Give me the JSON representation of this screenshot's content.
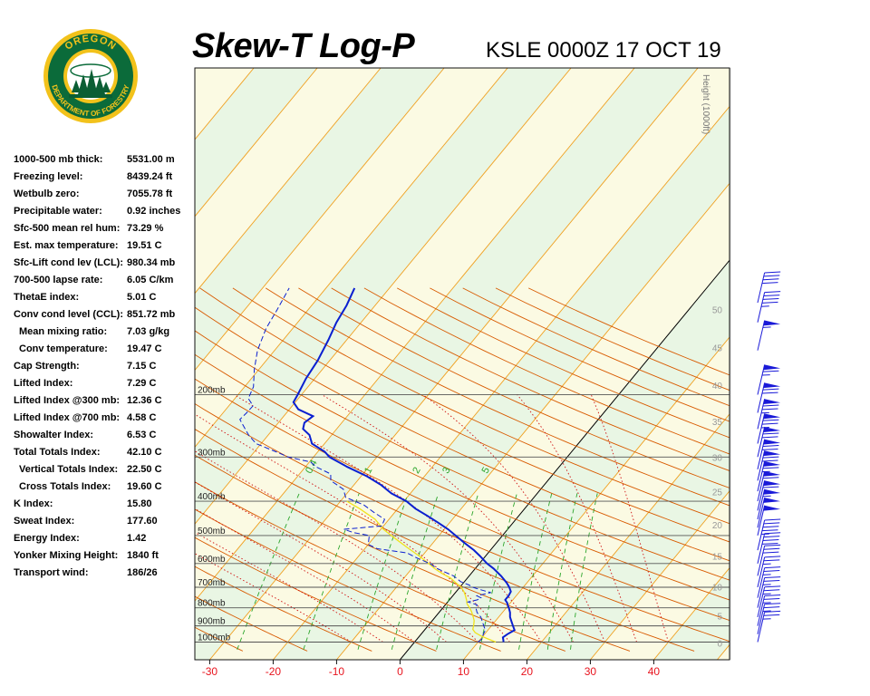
{
  "header": {
    "title": "Skew-T Log-P",
    "station_time": "KSLE 0000Z 17 OCT 19"
  },
  "logo": {
    "top_text": "OREGON",
    "bottom_text": "DEPARTMENT OF FORESTRY",
    "colors": {
      "ring": "#0b6b3a",
      "gold": "#f2c21b",
      "tree": "#0b5e34"
    }
  },
  "indices": [
    {
      "label": "1000-500 mb thick:",
      "value": "5531.00 m",
      "indent": false
    },
    {
      "label": "Freezing level:",
      "value": "8439.24 ft",
      "indent": false
    },
    {
      "label": "Wetbulb zero:",
      "value": "7055.78 ft",
      "indent": false
    },
    {
      "label": "Precipitable water:",
      "value": "0.92 inches",
      "indent": false
    },
    {
      "label": "Sfc-500 mean rel hum:",
      "value": "73.29 %",
      "indent": false
    },
    {
      "label": "Est. max temperature:",
      "value": "19.51 C",
      "indent": false
    },
    {
      "label": "Sfc-Lift cond lev (LCL):",
      "value": "980.34 mb",
      "indent": false
    },
    {
      "label": "700-500 lapse rate:",
      "value": "6.05 C/km",
      "indent": false
    },
    {
      "label": "ThetaE index:",
      "value": "5.01 C",
      "indent": false
    },
    {
      "label": "Conv cond level (CCL):",
      "value": "851.72 mb",
      "indent": false
    },
    {
      "label": "Mean mixing ratio:",
      "value": "7.03 g/kg",
      "indent": true
    },
    {
      "label": "Conv temperature:",
      "value": "19.47 C",
      "indent": true
    },
    {
      "label": "Cap Strength:",
      "value": "7.15 C",
      "indent": false
    },
    {
      "label": "Lifted Index:",
      "value": "7.29 C",
      "indent": false
    },
    {
      "label": "Lifted Index @300 mb:",
      "value": "12.36 C",
      "indent": false
    },
    {
      "label": "Lifted Index @700 mb:",
      "value": "4.58 C",
      "indent": false
    },
    {
      "label": "Showalter Index:",
      "value": "6.53 C",
      "indent": false
    },
    {
      "label": "Total Totals Index:",
      "value": "42.10 C",
      "indent": false
    },
    {
      "label": "Vertical Totals Index:",
      "value": "22.50 C",
      "indent": true
    },
    {
      "label": "Cross Totals Index:",
      "value": "19.60 C",
      "indent": true
    },
    {
      "label": "K Index:",
      "value": "15.80",
      "indent": false
    },
    {
      "label": "Sweat Index:",
      "value": "177.60",
      "indent": false
    },
    {
      "label": "Energy Index:",
      "value": "1.42",
      "indent": false
    },
    {
      "label": "Yonker Mixing Height:",
      "value": "1840 ft",
      "indent": false
    },
    {
      "label": "Transport wind:",
      "value": "186/26",
      "indent": false
    }
  ],
  "chart_data": {
    "type": "line",
    "title": "Skew-T Log-P",
    "subtitle": "KSLE 0000Z 17 OCT 19",
    "x_axis": {
      "ticks": [
        -30,
        -20,
        -10,
        0,
        10,
        20,
        30,
        40
      ],
      "color": "#e8141e"
    },
    "isobars": [
      {
        "p": 1000,
        "label": "1000mb"
      },
      {
        "p": 900,
        "label": "900mb"
      },
      {
        "p": 800,
        "label": "800mb"
      },
      {
        "p": 700,
        "label": "700mb"
      },
      {
        "p": 600,
        "label": "600mb"
      },
      {
        "p": 500,
        "label": "500mb"
      },
      {
        "p": 400,
        "label": "400mb"
      },
      {
        "p": 300,
        "label": "300mb"
      },
      {
        "p": 200,
        "label": "200mb"
      }
    ],
    "height_axis": {
      "title": "Height (1000ft)",
      "ticks": [
        {
          "label": "0",
          "p": 1005
        },
        {
          "label": "5",
          "p": 843
        },
        {
          "label": "10",
          "p": 697
        },
        {
          "label": "15",
          "p": 572
        },
        {
          "label": "20",
          "p": 466
        },
        {
          "label": "25",
          "p": 376
        },
        {
          "label": "30",
          "p": 300
        },
        {
          "label": "35",
          "p": 238
        },
        {
          "label": "40",
          "p": 188
        },
        {
          "label": "45",
          "p": 147
        },
        {
          "label": "50",
          "p": 115
        }
      ]
    },
    "mixing_ratio_labels": [
      "0.4",
      "1",
      "2",
      "3",
      "5"
    ],
    "temperature_profile": {
      "color": "#0a1fd0",
      "points": [
        [
          1000,
          14.0
        ],
        [
          990,
          13.8
        ],
        [
          970,
          13.3
        ],
        [
          950,
          13.6
        ],
        [
          925,
          14.2
        ],
        [
          900,
          13.4
        ],
        [
          875,
          12.6
        ],
        [
          850,
          11.8
        ],
        [
          825,
          11.2
        ],
        [
          800,
          10.4
        ],
        [
          790,
          10.0
        ],
        [
          775,
          9.5
        ],
        [
          760,
          8.8
        ],
        [
          740,
          8.8
        ],
        [
          720,
          8.6
        ],
        [
          700,
          7.8
        ],
        [
          680,
          6.8
        ],
        [
          650,
          5.0
        ],
        [
          620,
          2.9
        ],
        [
          600,
          1.2
        ],
        [
          570,
          -1.0
        ],
        [
          550,
          -2.6
        ],
        [
          525,
          -5.0
        ],
        [
          500,
          -7.4
        ],
        [
          480,
          -9.4
        ],
        [
          460,
          -11.8
        ],
        [
          440,
          -14.4
        ],
        [
          420,
          -17.2
        ],
        [
          400,
          -19.6
        ],
        [
          380,
          -23.0
        ],
        [
          360,
          -25.7
        ],
        [
          340,
          -29.1
        ],
        [
          320,
          -33.4
        ],
        [
          300,
          -37.5
        ],
        [
          290,
          -38.9
        ],
        [
          275,
          -42.0
        ],
        [
          260,
          -43.5
        ],
        [
          250,
          -45.3
        ],
        [
          240,
          -45.9
        ],
        [
          230,
          -45.4
        ],
        [
          220,
          -48.6
        ],
        [
          210,
          -50.3
        ],
        [
          200,
          -50.6
        ],
        [
          180,
          -51.4
        ],
        [
          160,
          -51.9
        ],
        [
          140,
          -52.9
        ],
        [
          125,
          -53.9
        ],
        [
          112,
          -54.5
        ],
        [
          100,
          -55.5
        ]
      ]
    },
    "dewpoint_profile": {
      "color": "#0a1fd0",
      "points": [
        [
          1000,
          10.0
        ],
        [
          980,
          10.2
        ],
        [
          950,
          9.8
        ],
        [
          925,
          9.6
        ],
        [
          900,
          8.8
        ],
        [
          875,
          8.0
        ],
        [
          850,
          7.2
        ],
        [
          825,
          6.0
        ],
        [
          800,
          5.2
        ],
        [
          785,
          5.0
        ],
        [
          770,
          3.2
        ],
        [
          760,
          4.4
        ],
        [
          750,
          4.7
        ],
        [
          740,
          3.8
        ],
        [
          725,
          5.6
        ],
        [
          710,
          3.4
        ],
        [
          700,
          2.0
        ],
        [
          690,
          1.2
        ],
        [
          675,
          -0.6
        ],
        [
          650,
          -2.5
        ],
        [
          620,
          -6.0
        ],
        [
          600,
          -7.8
        ],
        [
          580,
          -10.4
        ],
        [
          560,
          -12.8
        ],
        [
          545,
          -18.0
        ],
        [
          530,
          -20.0
        ],
        [
          515,
          -20.5
        ],
        [
          500,
          -21.0
        ],
        [
          490,
          -24.0
        ],
        [
          480,
          -25.8
        ],
        [
          470,
          -20.3
        ],
        [
          450,
          -20.7
        ],
        [
          430,
          -23.3
        ],
        [
          410,
          -25.8
        ],
        [
          390,
          -29.7
        ],
        [
          370,
          -31.1
        ],
        [
          350,
          -34.2
        ],
        [
          335,
          -35.1
        ],
        [
          320,
          -38.3
        ],
        [
          310,
          -39.8
        ],
        [
          300,
          -44.0
        ],
        [
          290,
          -46.6
        ],
        [
          275,
          -50.8
        ],
        [
          260,
          -53.1
        ],
        [
          245,
          -55.1
        ],
        [
          235,
          -56.5
        ],
        [
          225,
          -56.3
        ],
        [
          215,
          -56.2
        ],
        [
          205,
          -57.9
        ],
        [
          190,
          -58.6
        ],
        [
          170,
          -60.7
        ],
        [
          150,
          -62.7
        ],
        [
          130,
          -64.2
        ],
        [
          115,
          -64.9
        ],
        [
          100,
          -65.8
        ]
      ]
    },
    "parcel_profile": {
      "color": "#f0e21c",
      "points": [
        [
          1000,
          12.8
        ],
        [
          980,
          11.2
        ],
        [
          960,
          9.6
        ],
        [
          940,
          8.3
        ],
        [
          920,
          7.5
        ],
        [
          900,
          7.2
        ],
        [
          870,
          6.6
        ],
        [
          850,
          6.0
        ],
        [
          820,
          5.0
        ],
        [
          800,
          4.2
        ],
        [
          780,
          3.3
        ],
        [
          760,
          2.7
        ],
        [
          740,
          2.0
        ],
        [
          720,
          1.2
        ],
        [
          700,
          0.2
        ],
        [
          680,
          -1.2
        ],
        [
          660,
          -2.6
        ],
        [
          640,
          -4.6
        ],
        [
          620,
          -6.4
        ],
        [
          600,
          -8.0
        ],
        [
          570,
          -10.6
        ],
        [
          540,
          -13.5
        ],
        [
          510,
          -16.5
        ],
        [
          480,
          -19.6
        ],
        [
          450,
          -22.2
        ],
        [
          420,
          -26.0
        ],
        [
          400,
          -29.0
        ]
      ]
    },
    "wind_barbs": [
      {
        "p": 1000,
        "speed_kt": 25
      },
      {
        "p": 950,
        "speed_kt": 25
      },
      {
        "p": 900,
        "speed_kt": 25
      },
      {
        "p": 850,
        "speed_kt": 25
      },
      {
        "p": 800,
        "speed_kt": 25
      },
      {
        "p": 750,
        "speed_kt": 25
      },
      {
        "p": 700,
        "speed_kt": 25
      },
      {
        "p": 650,
        "speed_kt": 30
      },
      {
        "p": 600,
        "speed_kt": 40
      },
      {
        "p": 550,
        "speed_kt": 45
      },
      {
        "p": 500,
        "speed_kt": 50
      },
      {
        "p": 475,
        "speed_kt": 50
      },
      {
        "p": 450,
        "speed_kt": 55
      },
      {
        "p": 425,
        "speed_kt": 60
      },
      {
        "p": 400,
        "speed_kt": 60
      },
      {
        "p": 375,
        "speed_kt": 65
      },
      {
        "p": 350,
        "speed_kt": 70
      },
      {
        "p": 325,
        "speed_kt": 70
      },
      {
        "p": 300,
        "speed_kt": 70
      },
      {
        "p": 275,
        "speed_kt": 75
      },
      {
        "p": 250,
        "speed_kt": 75
      },
      {
        "p": 225,
        "speed_kt": 70
      },
      {
        "p": 200,
        "speed_kt": 65
      },
      {
        "p": 150,
        "speed_kt": 55
      },
      {
        "p": 125,
        "speed_kt": 45
      },
      {
        "p": 110,
        "speed_kt": 40
      }
    ],
    "colors": {
      "isotherm": "#f0a020",
      "dry_adiabat": "#d85a00",
      "moist_adiabat": "#d01010",
      "mixing_ratio": "#2aa52a",
      "isobar": "#555555",
      "zero_isotherm": "#000000",
      "band_green": "#e9f6e4",
      "band_yellow": "#fbfae3",
      "barbs": "#1a1ad8"
    }
  }
}
